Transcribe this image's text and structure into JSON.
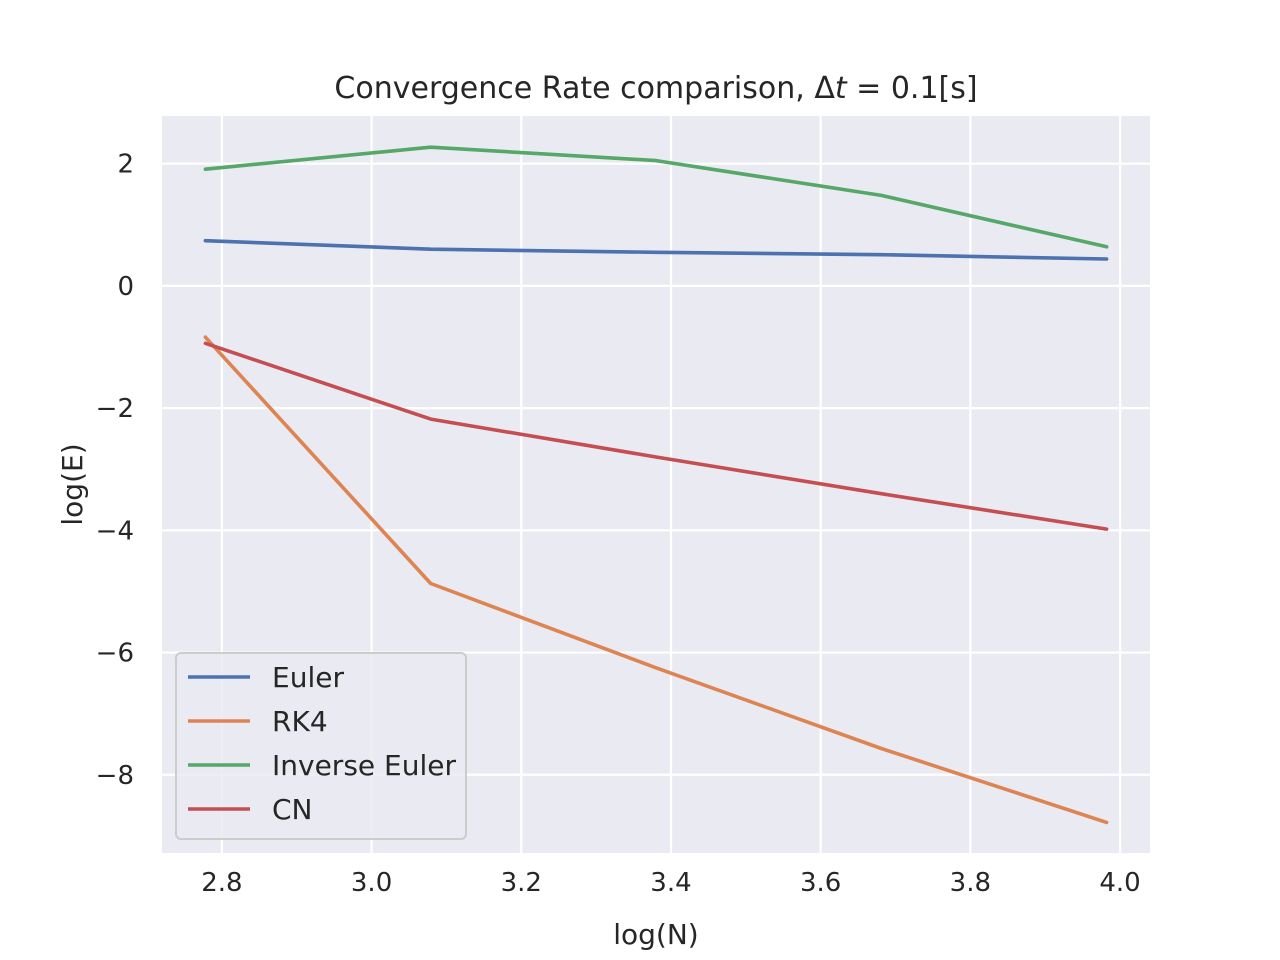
{
  "chart_data": {
    "type": "line",
    "title": "Convergence Rate comparison, Δt = 0.1[s]",
    "title_parts": {
      "lead": "Convergence Rate comparison, Δ",
      "var": "t",
      "tail": " = 0.1[s]"
    },
    "xlabel": "log(N)",
    "ylabel": "log(E)",
    "xlim": [
      2.72,
      4.04
    ],
    "ylim": [
      -9.28,
      2.78
    ],
    "xticks": [
      2.8,
      3.0,
      3.2,
      3.4,
      3.6,
      3.8,
      4.0
    ],
    "xtick_labels": [
      "2.8",
      "3.0",
      "3.2",
      "3.4",
      "3.6",
      "3.8",
      "4.0"
    ],
    "yticks": [
      2,
      0,
      -2,
      -4,
      -6,
      -8
    ],
    "ytick_labels": [
      "2",
      "0",
      "−2",
      "−4",
      "−6",
      "−8"
    ],
    "grid": true,
    "legend_position": "lower-left",
    "series": [
      {
        "name": "Euler",
        "color": "#4c72b0",
        "x": [
          2.778,
          3.079,
          3.38,
          3.681,
          3.982
        ],
        "y": [
          0.74,
          0.6,
          0.55,
          0.51,
          0.44
        ]
      },
      {
        "name": "RK4",
        "color": "#dd8452",
        "x": [
          2.778,
          3.079,
          3.38,
          3.681,
          3.982
        ],
        "y": [
          -0.84,
          -4.87,
          -6.25,
          -7.57,
          -8.78
        ]
      },
      {
        "name": "Inverse Euler",
        "color": "#55a868",
        "x": [
          2.778,
          3.079,
          3.38,
          3.681,
          3.982
        ],
        "y": [
          1.91,
          2.27,
          2.05,
          1.48,
          0.64
        ]
      },
      {
        "name": "CN",
        "color": "#c44e52",
        "x": [
          2.778,
          3.079,
          3.38,
          3.681,
          3.982
        ],
        "y": [
          -0.94,
          -2.18,
          -2.8,
          -3.4,
          -3.98
        ]
      }
    ]
  },
  "style": {
    "plot_bg": "#eaeaf2",
    "grid_color": "#ffffff",
    "text_color": "#262626"
  }
}
